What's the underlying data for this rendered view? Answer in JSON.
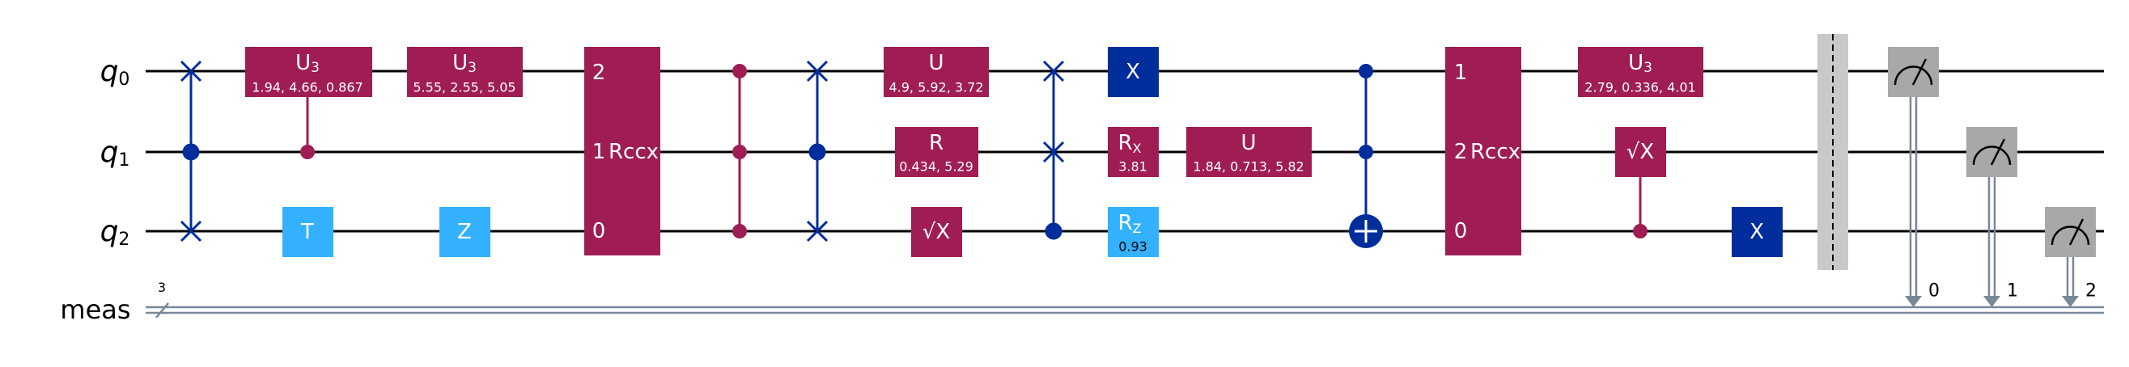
{
  "qubit_labels": [
    "q",
    "q",
    "q"
  ],
  "qubit_indices": [
    "0",
    "1",
    "2"
  ],
  "classical_label": "meas",
  "classical_width": "3",
  "gates": {
    "u3_a": {
      "label": "U",
      "sub": "3",
      "params": "1.94, 4.66, 0.867"
    },
    "u3_b": {
      "label": "U",
      "sub": "3",
      "params": "5.55, 2.55, 5.05"
    },
    "t": {
      "label": "T"
    },
    "z": {
      "label": "Z"
    },
    "rccx_a": {
      "label": "Rccx",
      "pins": [
        "2",
        "1",
        "0"
      ]
    },
    "u_a": {
      "label": "U",
      "params": "4.9, 5.92, 3.72"
    },
    "r": {
      "label": "R",
      "params": "0.434, 5.29"
    },
    "sx_a": {
      "label": "√X"
    },
    "x_a": {
      "label": "X"
    },
    "rx": {
      "label": "R",
      "sub": "X",
      "params": "3.81"
    },
    "rz": {
      "label": "R",
      "sub": "Z",
      "params": "0.93"
    },
    "u_b": {
      "label": "U",
      "params": "1.84, 0.713, 5.82"
    },
    "rccx_b": {
      "label": "Rccx",
      "pins": [
        "1",
        "2",
        "0"
      ]
    },
    "u3_c": {
      "label": "U",
      "sub": "3",
      "params": "2.79, 0.336, 4.01"
    },
    "sx_b": {
      "label": "√X"
    },
    "x_b": {
      "label": "X"
    }
  },
  "measure_bits": [
    "0",
    "1",
    "2"
  ],
  "colors": {
    "wire": "#000000",
    "classical_wire": "#778899",
    "magenta": "#9F1D54",
    "light_blue": "#33B1FF",
    "dark_blue": "#002D9C",
    "cnot_blue": "#002D9C",
    "measure_gray": "#A8A8A8",
    "barrier_gray": "#C9C9C9"
  }
}
